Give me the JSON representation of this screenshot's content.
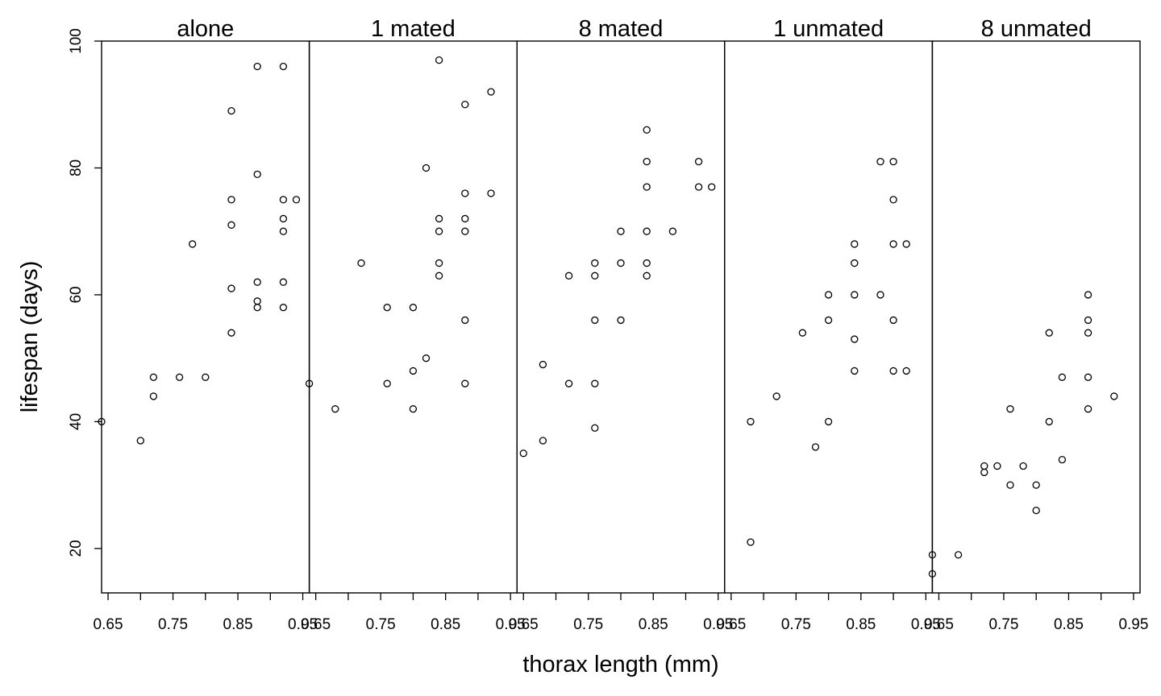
{
  "chart_data": {
    "type": "scatter",
    "title": "",
    "xlabel": "thorax length (mm)",
    "ylabel": "lifespan (days)",
    "xlim": [
      0.64,
      0.96
    ],
    "ylim": [
      13,
      100
    ],
    "x_ticks": [
      0.65,
      0.75,
      0.85,
      0.95
    ],
    "x_tick_labels": [
      "0.65",
      "0.75",
      "0.85",
      "0.95"
    ],
    "y_ticks": [
      20,
      40,
      60,
      80,
      100
    ],
    "y_tick_labels": [
      "20",
      "40",
      "60",
      "80",
      "100"
    ],
    "grid": false,
    "legend": "none",
    "marker": "open-circle",
    "colors": {
      "marker": "#000000",
      "axes": "#000000",
      "background": "#ffffff"
    },
    "panels": [
      {
        "name": "alone",
        "points": [
          [
            0.64,
            40
          ],
          [
            0.7,
            37
          ],
          [
            0.72,
            47
          ],
          [
            0.72,
            44
          ],
          [
            0.76,
            47
          ],
          [
            0.78,
            68
          ],
          [
            0.8,
            47
          ],
          [
            0.84,
            89
          ],
          [
            0.84,
            75
          ],
          [
            0.84,
            71
          ],
          [
            0.84,
            61
          ],
          [
            0.84,
            54
          ],
          [
            0.88,
            96
          ],
          [
            0.88,
            79
          ],
          [
            0.88,
            62
          ],
          [
            0.88,
            59
          ],
          [
            0.88,
            58
          ],
          [
            0.92,
            96
          ],
          [
            0.92,
            75
          ],
          [
            0.92,
            72
          ],
          [
            0.92,
            70
          ],
          [
            0.92,
            62
          ],
          [
            0.92,
            58
          ],
          [
            0.94,
            75
          ]
        ]
      },
      {
        "name": "1 mated",
        "points": [
          [
            0.64,
            46
          ],
          [
            0.68,
            42
          ],
          [
            0.72,
            65
          ],
          [
            0.76,
            58
          ],
          [
            0.76,
            46
          ],
          [
            0.8,
            58
          ],
          [
            0.8,
            48
          ],
          [
            0.8,
            42
          ],
          [
            0.82,
            80
          ],
          [
            0.82,
            50
          ],
          [
            0.84,
            97
          ],
          [
            0.84,
            72
          ],
          [
            0.84,
            70
          ],
          [
            0.84,
            65
          ],
          [
            0.84,
            63
          ],
          [
            0.88,
            90
          ],
          [
            0.88,
            76
          ],
          [
            0.88,
            72
          ],
          [
            0.88,
            70
          ],
          [
            0.88,
            56
          ],
          [
            0.88,
            46
          ],
          [
            0.92,
            92
          ],
          [
            0.92,
            76
          ]
        ]
      },
      {
        "name": "8 mated",
        "points": [
          [
            0.65,
            35
          ],
          [
            0.68,
            49
          ],
          [
            0.68,
            37
          ],
          [
            0.72,
            63
          ],
          [
            0.72,
            46
          ],
          [
            0.76,
            65
          ],
          [
            0.76,
            63
          ],
          [
            0.76,
            56
          ],
          [
            0.76,
            46
          ],
          [
            0.76,
            39
          ],
          [
            0.8,
            70
          ],
          [
            0.8,
            65
          ],
          [
            0.8,
            56
          ],
          [
            0.84,
            86
          ],
          [
            0.84,
            81
          ],
          [
            0.84,
            77
          ],
          [
            0.84,
            70
          ],
          [
            0.84,
            65
          ],
          [
            0.84,
            63
          ],
          [
            0.88,
            70
          ],
          [
            0.92,
            81
          ],
          [
            0.92,
            77
          ],
          [
            0.94,
            77
          ]
        ]
      },
      {
        "name": "1 unmated",
        "points": [
          [
            0.68,
            40
          ],
          [
            0.68,
            21
          ],
          [
            0.72,
            44
          ],
          [
            0.76,
            54
          ],
          [
            0.78,
            36
          ],
          [
            0.8,
            60
          ],
          [
            0.8,
            56
          ],
          [
            0.8,
            40
          ],
          [
            0.84,
            68
          ],
          [
            0.84,
            65
          ],
          [
            0.84,
            60
          ],
          [
            0.84,
            53
          ],
          [
            0.84,
            48
          ],
          [
            0.88,
            81
          ],
          [
            0.88,
            60
          ],
          [
            0.9,
            81
          ],
          [
            0.9,
            75
          ],
          [
            0.9,
            68
          ],
          [
            0.9,
            56
          ],
          [
            0.9,
            48
          ],
          [
            0.92,
            68
          ],
          [
            0.92,
            48
          ]
        ]
      },
      {
        "name": "8 unmated",
        "points": [
          [
            0.64,
            19
          ],
          [
            0.64,
            16
          ],
          [
            0.68,
            19
          ],
          [
            0.72,
            33
          ],
          [
            0.72,
            32
          ],
          [
            0.74,
            33
          ],
          [
            0.76,
            42
          ],
          [
            0.76,
            30
          ],
          [
            0.78,
            33
          ],
          [
            0.8,
            30
          ],
          [
            0.8,
            26
          ],
          [
            0.82,
            54
          ],
          [
            0.82,
            40
          ],
          [
            0.84,
            47
          ],
          [
            0.84,
            34
          ],
          [
            0.88,
            60
          ],
          [
            0.88,
            56
          ],
          [
            0.88,
            54
          ],
          [
            0.88,
            47
          ],
          [
            0.88,
            42
          ],
          [
            0.92,
            44
          ]
        ]
      }
    ]
  }
}
